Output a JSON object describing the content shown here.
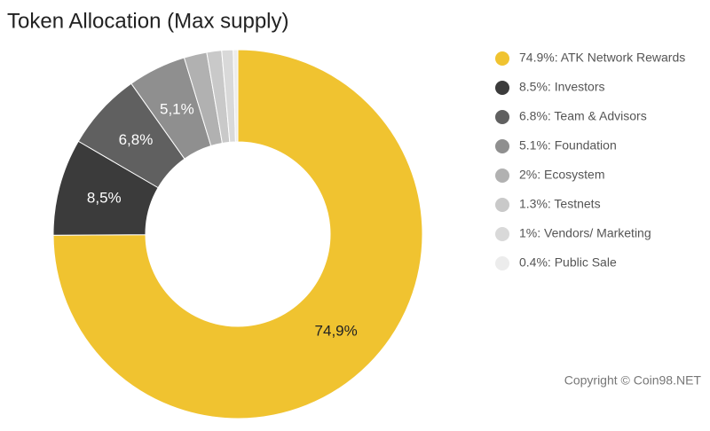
{
  "chart_data": {
    "type": "donut",
    "title": "Token Allocation (Max supply)",
    "categories": [
      "74.9%: ATK Network Rewards",
      "8.5%: Investors",
      "6.8%: Team & Advisors",
      "5.1%: Foundation",
      "2%: Ecosystem",
      "1.3%: Testnets",
      "1%: Vendors/ Marketing",
      "0.4%: Public Sale"
    ],
    "values": [
      74.9,
      8.5,
      6.8,
      5.1,
      2,
      1.3,
      1,
      0.4
    ],
    "value_labels": [
      "74,9%",
      "8,5%",
      "6,8%",
      "5,1%",
      null,
      null,
      null,
      null
    ],
    "colors": [
      "#f0c330",
      "#3b3b3b",
      "#606060",
      "#8f8f8f",
      "#b1b1b1",
      "#c9c9c9",
      "#d9d9d9",
      "#ececec"
    ],
    "legend": "right",
    "source": "Copyright © Coin98.NET"
  }
}
